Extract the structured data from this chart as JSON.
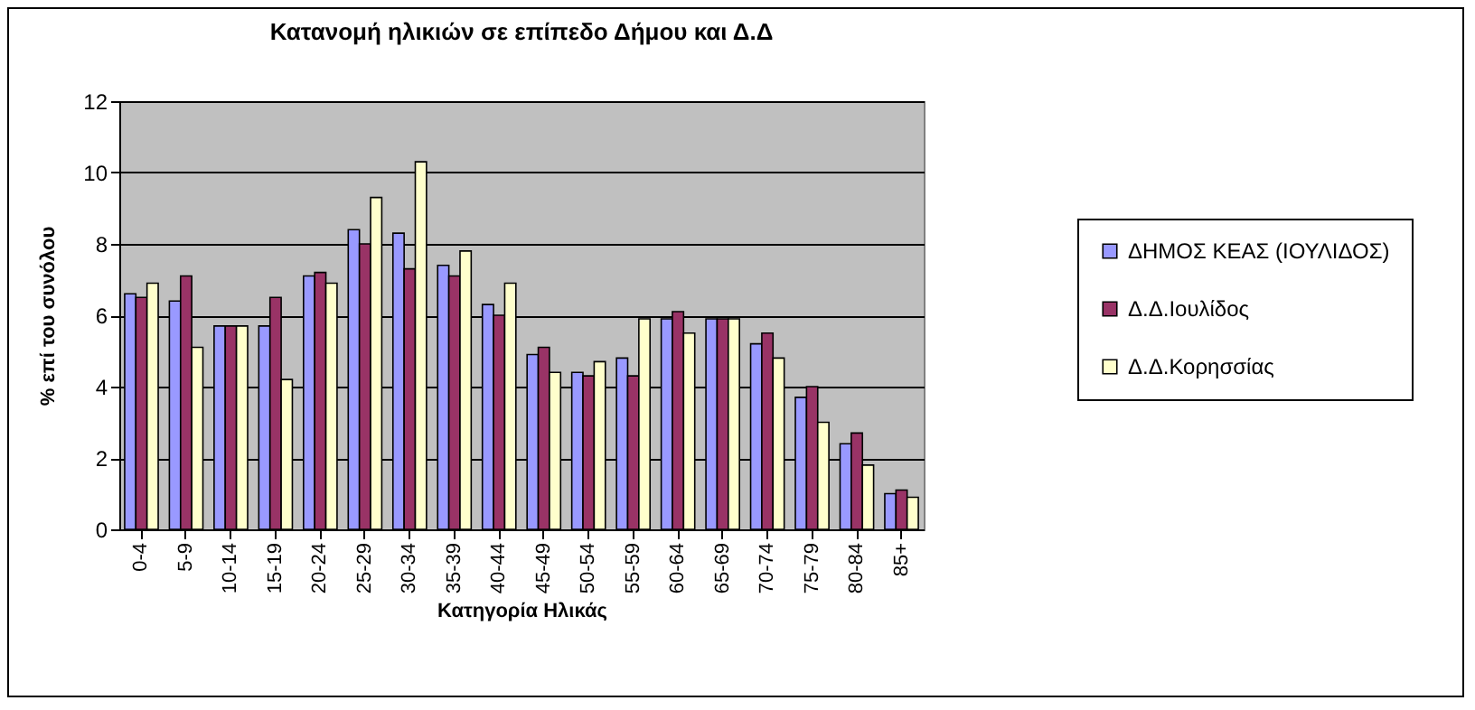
{
  "chart_data": {
    "type": "bar",
    "title": "Κατανομή ηλικιών σε επίπεδο Δήμου και Δ.Δ",
    "xlabel": "Κατηγορία Ηλικάς",
    "ylabel": "% επί του συνόλου",
    "categories": [
      "0-4",
      "5-9",
      "10-14",
      "15-19",
      "20-24",
      "25-29",
      "30-34",
      "35-39",
      "40-44",
      "45-49",
      "50-54",
      "55-59",
      "60-64",
      "65-69",
      "70-74",
      "75-79",
      "80-84",
      "85+"
    ],
    "series": [
      {
        "name": "ΔΗΜΟΣ ΚΕΑΣ (ΙΟΥΛΙΔΟΣ)",
        "color": "#9999ff",
        "values": [
          6.6,
          6.4,
          5.7,
          5.7,
          7.1,
          8.4,
          8.3,
          7.4,
          6.3,
          4.9,
          4.4,
          4.8,
          5.9,
          5.9,
          5.2,
          3.7,
          2.4,
          1.0
        ]
      },
      {
        "name": "Δ.Δ.Ιουλίδος",
        "color": "#993366",
        "values": [
          6.5,
          7.1,
          5.7,
          6.5,
          7.2,
          8.0,
          7.3,
          7.1,
          6.0,
          5.1,
          4.3,
          4.3,
          6.1,
          5.9,
          5.5,
          4.0,
          2.7,
          1.1
        ]
      },
      {
        "name": "Δ.Δ.Κορησσίας",
        "color": "#ffffcc",
        "values": [
          6.9,
          5.1,
          5.7,
          4.2,
          6.9,
          9.3,
          10.3,
          7.8,
          6.9,
          4.4,
          4.7,
          5.9,
          5.5,
          5.9,
          4.8,
          3.0,
          1.8,
          0.9
        ]
      }
    ],
    "ylim": [
      0,
      12
    ],
    "yticks": [
      0,
      2,
      4,
      6,
      8,
      10,
      12
    ],
    "grid": "y",
    "legend": "right"
  }
}
